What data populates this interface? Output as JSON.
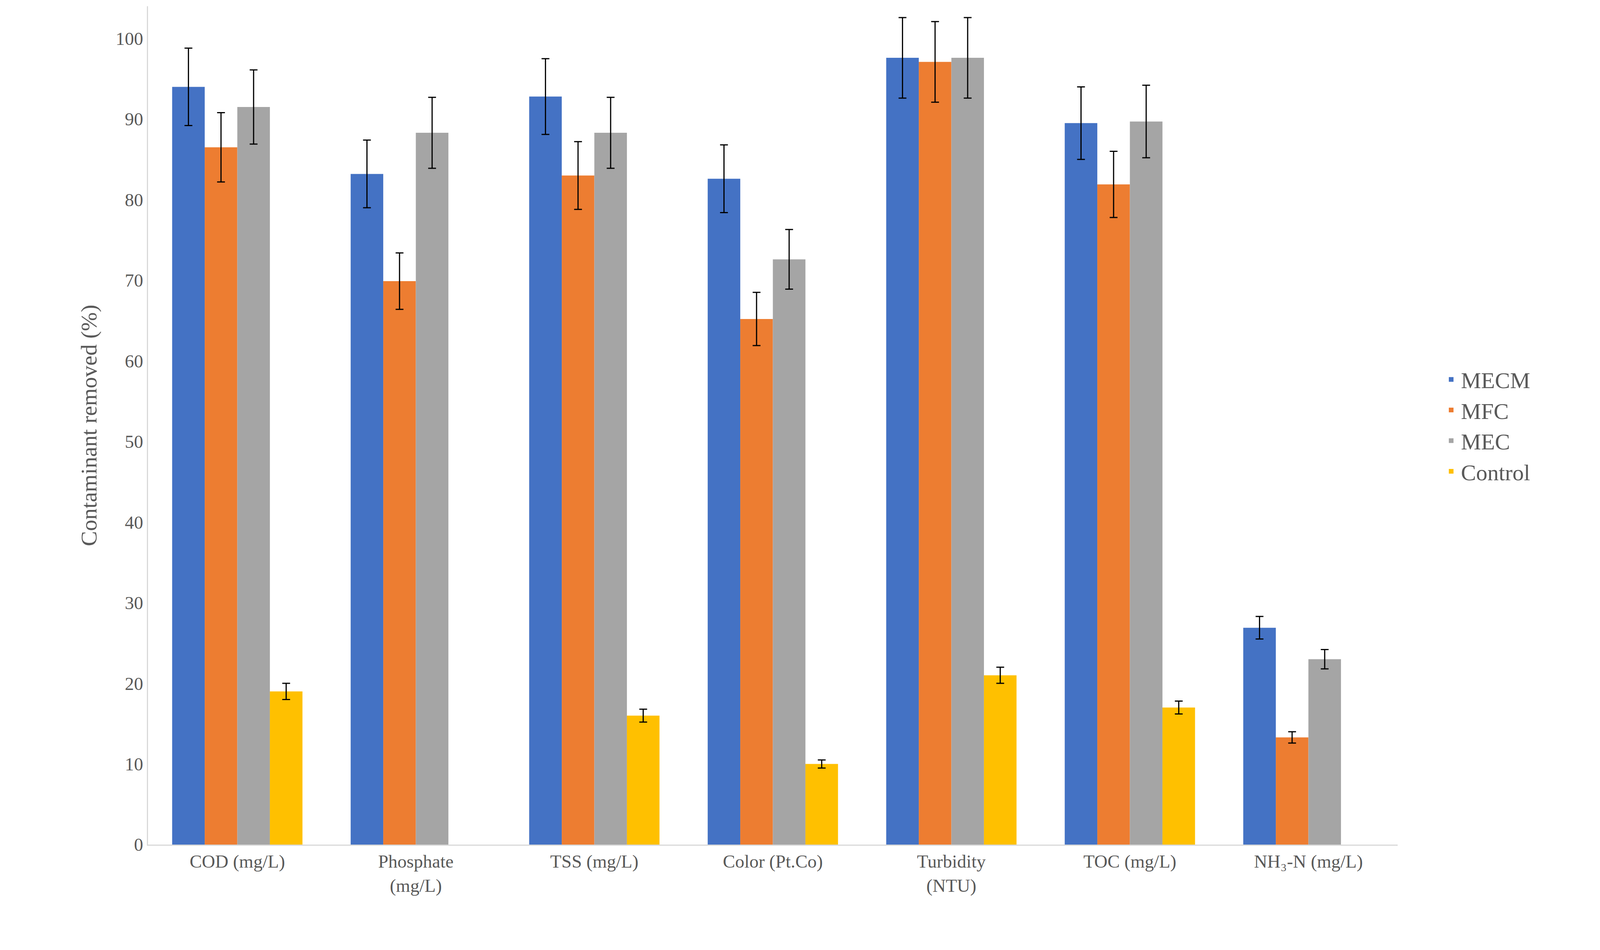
{
  "chart_data": {
    "type": "bar",
    "categories": [
      "COD (mg/L)",
      "Phosphate (mg/L)",
      "TSS (mg/L)",
      "Color (Pt.Co)",
      "Turbidity (NTU)",
      "TOC (mg/L)",
      "NH₃-N (mg/L)"
    ],
    "series": [
      {
        "name": "MECM",
        "color": "#4472c4",
        "values": [
          94,
          83.2,
          92.8,
          82.6,
          97.6,
          89.5,
          26.9
        ],
        "errors": [
          4.8,
          4.2,
          4.7,
          4.2,
          5,
          4.5,
          1.4
        ]
      },
      {
        "name": "MFC",
        "color": "#ed7d31",
        "values": [
          86.5,
          69.9,
          83,
          65.2,
          97.1,
          81.9,
          13.3
        ],
        "errors": [
          4.3,
          3.5,
          4.2,
          3.3,
          5,
          4.1,
          0.7
        ]
      },
      {
        "name": "MEC",
        "color": "#a5a5a5",
        "values": [
          91.5,
          88.3,
          88.3,
          72.6,
          97.6,
          89.7,
          23
        ],
        "errors": [
          4.6,
          4.4,
          4.4,
          3.7,
          5,
          4.5,
          1.2
        ]
      },
      {
        "name": "Control",
        "color": "#ffc000",
        "values": [
          19,
          null,
          16,
          10,
          21,
          17,
          null
        ],
        "errors": [
          1,
          null,
          0.8,
          0.5,
          1,
          0.8,
          null
        ]
      }
    ],
    "y_label": "Contaminant removed (%)",
    "ylim": [
      0,
      104
    ],
    "yticks": [
      0,
      10,
      20,
      30,
      40,
      50,
      60,
      70,
      80,
      90,
      100
    ],
    "grid": false,
    "legend": "right"
  }
}
